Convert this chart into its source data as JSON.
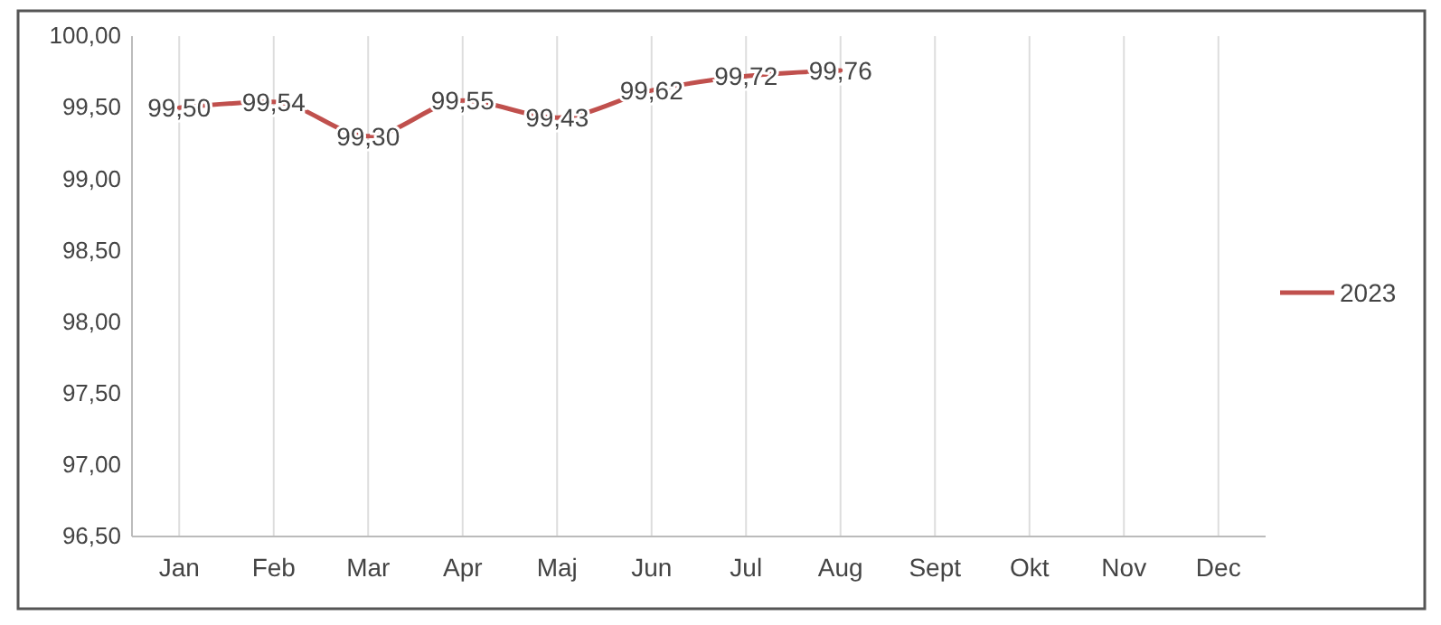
{
  "chart_data": {
    "type": "line",
    "categories": [
      "Jan",
      "Feb",
      "Mar",
      "Apr",
      "Maj",
      "Jun",
      "Jul",
      "Aug",
      "Sept",
      "Okt",
      "Nov",
      "Dec"
    ],
    "series": [
      {
        "name": "2023",
        "color": "#c0504d",
        "values": [
          99.5,
          99.54,
          99.3,
          99.55,
          99.43,
          99.62,
          99.72,
          99.76,
          null,
          null,
          null,
          null
        ],
        "value_labels": [
          "99,50",
          "99,54",
          "99,30",
          "99,55",
          "99,43",
          "99,62",
          "99,72",
          "99,76",
          null,
          null,
          null,
          null
        ]
      }
    ],
    "ylim": [
      96.5,
      100
    ],
    "yticks": [
      {
        "value": 96.5,
        "label": "96,50"
      },
      {
        "value": 97,
        "label": "97,00"
      },
      {
        "value": 97.5,
        "label": "97,50"
      },
      {
        "value": 98,
        "label": "98,00"
      },
      {
        "value": 98.5,
        "label": "98,50"
      },
      {
        "value": 99,
        "label": "99,00"
      },
      {
        "value": 99.5,
        "label": "99,50"
      },
      {
        "value": 100,
        "label": "100,00"
      }
    ],
    "grid": "x",
    "legend": "right",
    "marker": "none",
    "line_style": "solid"
  }
}
